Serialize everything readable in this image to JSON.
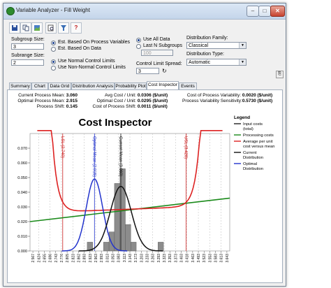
{
  "window": {
    "title": "Variable Analyzer - Fill Weight",
    "minimize": "–",
    "maximize": "□",
    "close": "✕"
  },
  "toolbar": {
    "icons": [
      "save-icon",
      "copy-icon",
      "image-icon",
      "print-preview-icon",
      "filter-icon",
      "help-icon"
    ],
    "help_glyph": "?"
  },
  "settings": {
    "subgroup_size_label": "Subgroup Size:",
    "subgroup_size_value": "3",
    "subrange_size_label": "Subrange Size:",
    "subrange_size_value": "2",
    "est_process_label": "Est. Based On Process Variables",
    "est_data_label": "Est. Based On Data",
    "normal_limits_label": "Use Normal Control Limits",
    "nonnormal_limits_label": "Use Non-Normal Control Limits",
    "use_all_label": "Use All Data",
    "last_n_label": "Last N Subgroups",
    "last_n_value": "100",
    "spread_label": "Control Limit Spread:",
    "spread_value": "3",
    "dist_family_label": "Distribution Family:",
    "dist_family_value": "Classical",
    "dist_type_label": "Distribution Type:",
    "dist_type_value": "Automatic"
  },
  "tabs": [
    "Summary",
    "Chart",
    "Data Grid",
    "Distribution Analysis",
    "Probability Plot",
    "Cost Inspector",
    "Events"
  ],
  "stats": {
    "col1": [
      {
        "label": "Current Process Mean:",
        "value": "3.060"
      },
      {
        "label": "Optimal Process Mean:",
        "value": "2.915"
      },
      {
        "label": "Process Shift:",
        "value": "0.145"
      }
    ],
    "col2": [
      {
        "label": "Avg Cost / Unit:",
        "value": "0.0306 ($/unit)"
      },
      {
        "label": "Optimal Cost / Unit:",
        "value": "0.0295 ($/unit)"
      },
      {
        "label": "Cost of Process Shift:",
        "value": "0.0011 ($/unit)"
      }
    ],
    "col3": [
      {
        "label": "Cost of Process Variability:",
        "value": "0.0020 ($/unit)"
      },
      {
        "label": "Process Variability Sensitivity:",
        "value": "0.5730 ($/unit)"
      }
    ]
  },
  "chart_data": {
    "type": "line",
    "title": "Cost Inspector",
    "ylim": [
      0,
      0.08
    ],
    "yticks": [
      "0.000",
      "0.010",
      "0.020",
      "0.030",
      "0.040",
      "0.050",
      "0.060",
      "0.070"
    ],
    "xlim": [
      2.56,
      3.66
    ],
    "xticks": [
      "2.567",
      "2.624",
      "2.655",
      "2.686",
      "2.743",
      "2.776",
      "2.805",
      "2.823",
      "2.862",
      "2.893",
      "2.923",
      "2.963",
      "2.993",
      "3.013",
      "3.053",
      "3.083",
      "3.113",
      "3.143",
      "3.173",
      "3.203",
      "3.233",
      "3.263",
      "3.293",
      "3.323",
      "3.353",
      "3.373",
      "3.403",
      "3.418",
      "3.463",
      "3.493",
      "3.523",
      "3.553",
      "3.583",
      "3.613",
      "3.643"
    ],
    "vlines": [
      {
        "label": "LSL (2.740)",
        "x": 2.74,
        "color": "#cc2222"
      },
      {
        "label": "Optimal Mean (2.915)",
        "x": 2.915,
        "color": "#2233cc"
      },
      {
        "label": "Current Mean (3.060)",
        "x": 3.06,
        "color": "#111111"
      },
      {
        "label": "USL (3.420)",
        "x": 3.42,
        "color": "#cc2222"
      }
    ],
    "histogram": {
      "x": [
        2.98,
        3.01,
        3.04,
        3.07,
        3.1,
        3.13
      ],
      "values": [
        0.006,
        0.013,
        0.046,
        0.056,
        0.018,
        0.006
      ],
      "extra": [
        {
          "x": 2.89,
          "value": 0.006
        },
        {
          "x": 3.28,
          "value": 0.006
        }
      ]
    },
    "series": [
      {
        "name": "Input costs (total)",
        "color": "#222222"
      },
      {
        "name": "Processing costs",
        "color": "#1a8a1a",
        "x": [
          2.56,
          3.66
        ],
        "values": [
          0.02,
          0.036
        ]
      },
      {
        "name": "Average per unit cost versus mean",
        "color": "#dd2222"
      },
      {
        "name": "Current Distribution",
        "color": "#111111",
        "mean": 3.06,
        "sd": 0.058,
        "peak": 0.044
      },
      {
        "name": "Optimal Distribution",
        "color": "#2233cc",
        "mean": 2.915,
        "sd": 0.045,
        "peak": 0.049
      }
    ],
    "legend_title": "Legend",
    "legend_position": "right"
  }
}
